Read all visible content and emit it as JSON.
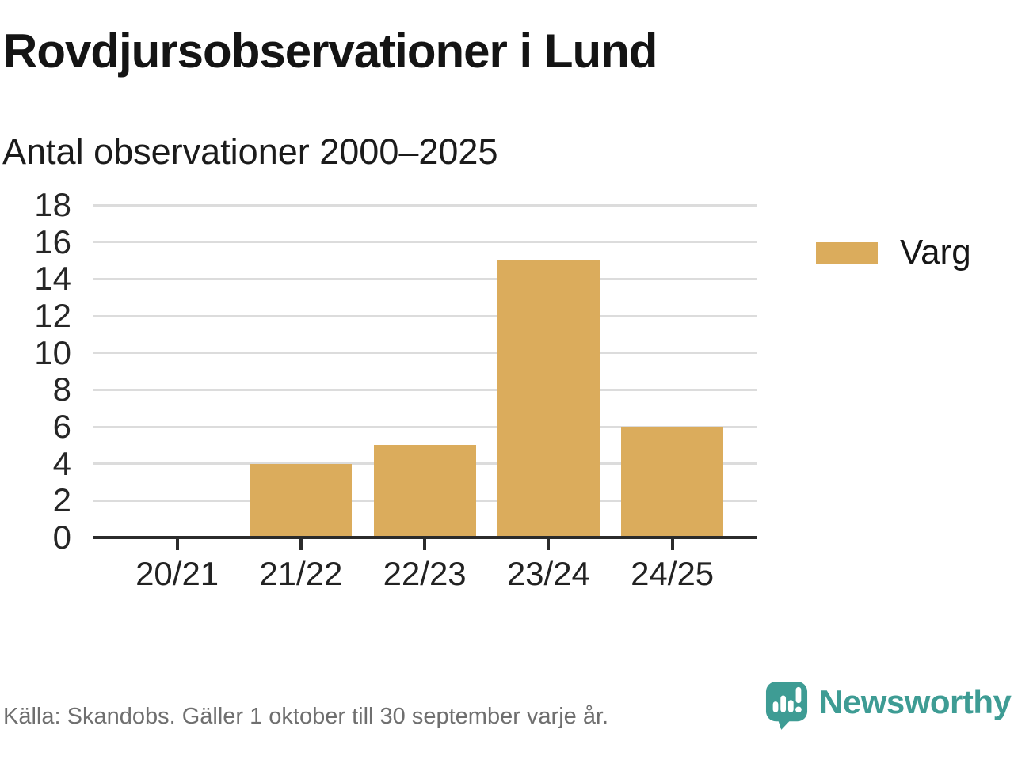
{
  "title": "Rovdjursobservationer i Lund",
  "subtitle": "Antal observationer 2000–2025",
  "legend": {
    "items": [
      {
        "label": "Varg",
        "color": "#DBAC5C"
      }
    ]
  },
  "footer": {
    "source": "Källa: Skandobs. Gäller 1 oktober till 30 september varje år.",
    "brand": "Newsworthy",
    "brand_color": "#3E9C94",
    "logo_icon": "speech-bubble-bar-chart-icon"
  },
  "colors": {
    "bar": "#DBAC5C",
    "grid": "#DCDCDC",
    "axis": "#2B2B2B",
    "tick_text": "#262626",
    "muted_text": "#6F6F6F"
  },
  "chart_data": {
    "type": "bar",
    "title": "Rovdjursobservationer i Lund",
    "subtitle": "Antal observationer 2000–2025",
    "categories": [
      "20/21",
      "21/22",
      "22/23",
      "23/24",
      "24/25"
    ],
    "series": [
      {
        "name": "Varg",
        "values": [
          0,
          4,
          5,
          15,
          6
        ],
        "color": "#DBAC5C"
      }
    ],
    "xlabel": "",
    "ylabel": "",
    "ylim": [
      0,
      18
    ],
    "yticks": [
      0,
      2,
      4,
      6,
      8,
      10,
      12,
      14,
      16,
      18
    ],
    "grid": "horizontal",
    "legend_position": "right"
  }
}
